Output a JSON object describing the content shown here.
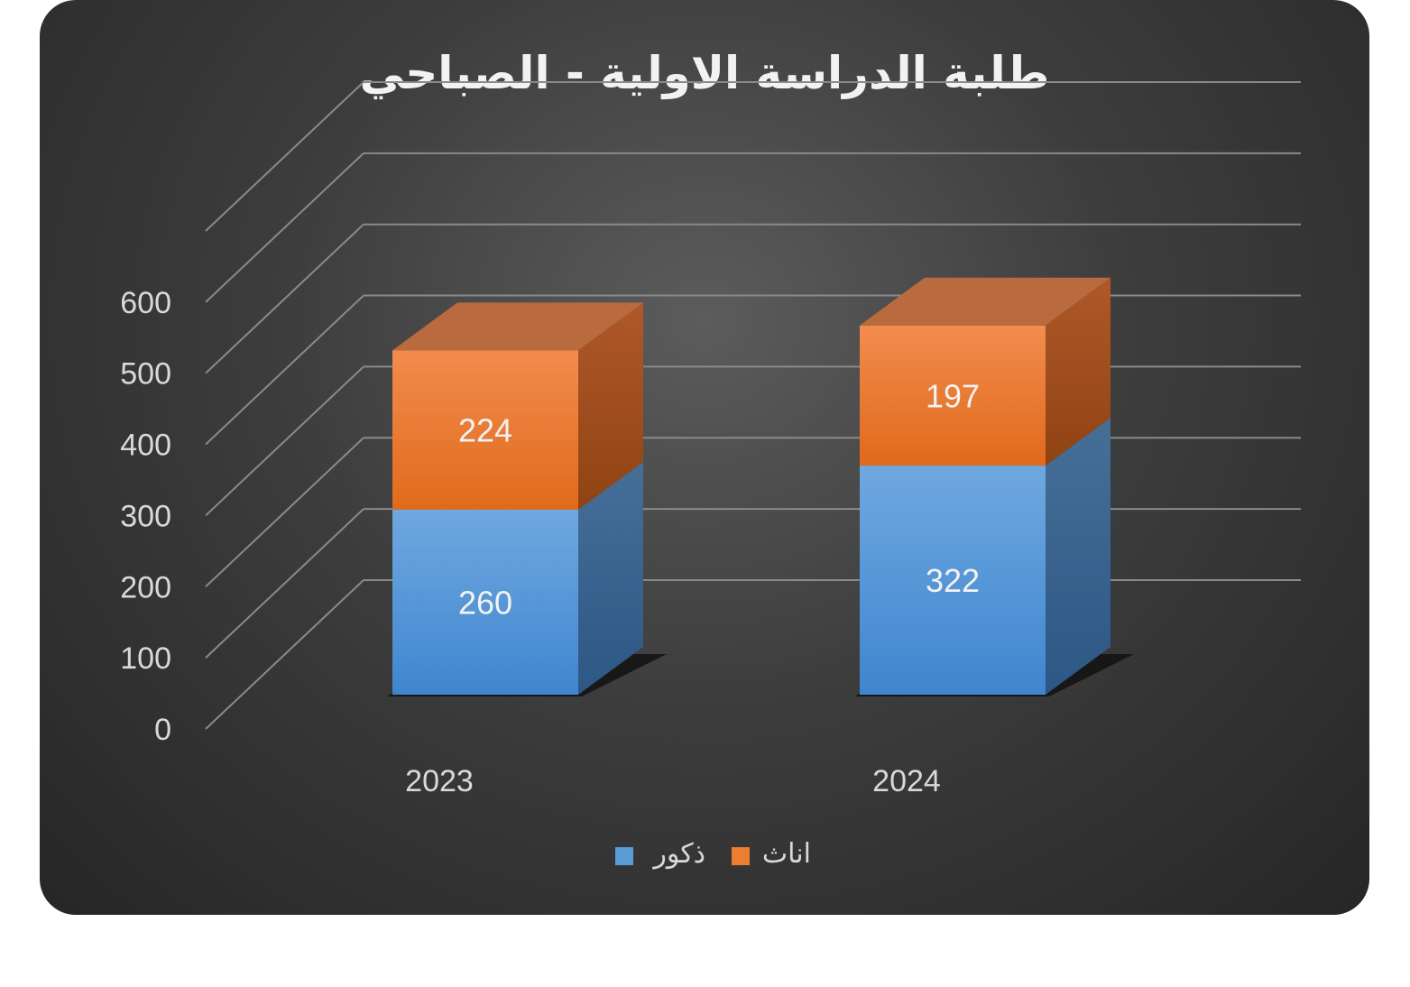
{
  "chart_data": {
    "type": "bar",
    "stacked": true,
    "three_d": true,
    "title": "طلبة الدراسة الاولية - الصباحي",
    "categories": [
      "2023",
      "2024"
    ],
    "series": [
      {
        "name": "ذكور",
        "values": [
          260,
          322
        ],
        "color": "#5b9bd5"
      },
      {
        "name": "اناث",
        "values": [
          224,
          197
        ],
        "color": "#ed7d31"
      }
    ],
    "y_ticks": [
      "0",
      "100",
      "200",
      "300",
      "400",
      "500",
      "600"
    ],
    "ylim": [
      0,
      700
    ],
    "grid": true,
    "legend_position": "bottom"
  }
}
